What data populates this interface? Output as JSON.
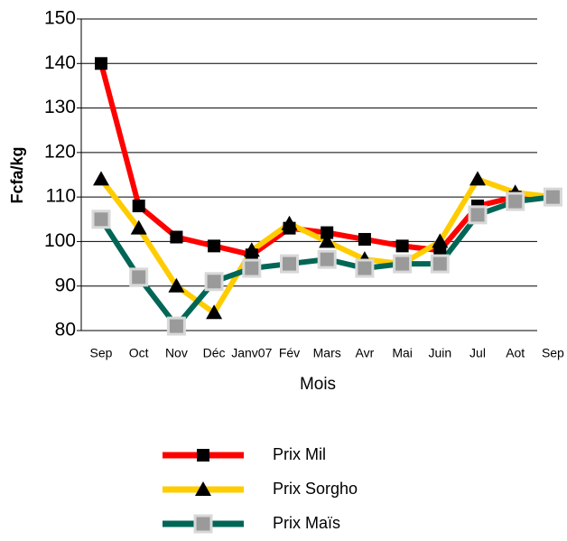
{
  "chart_data": {
    "type": "line",
    "categories": [
      "Sep",
      "Oct",
      "Nov",
      "Déc",
      "Janv07",
      "Fév",
      "Mars",
      "Avr",
      "Mai",
      "Juin",
      "Jul",
      "Aot",
      "Sep"
    ],
    "series": [
      {
        "name": "Prix Mil",
        "color": "#ff0000",
        "marker": "square",
        "values": [
          140,
          108,
          101,
          99,
          97,
          103,
          102,
          100.5,
          99,
          98,
          108,
          110,
          110
        ]
      },
      {
        "name": "Prix Sorgho",
        "color": "#ffcc00",
        "marker": "triangle",
        "values": [
          114,
          103,
          90,
          84,
          98,
          104,
          100,
          96,
          95,
          100,
          114,
          111,
          110
        ]
      },
      {
        "name": "Prix Maïs",
        "color": "#006655",
        "marker": "graysquare",
        "values": [
          105,
          92,
          81,
          91,
          94,
          95,
          96,
          94,
          95,
          95,
          106,
          109,
          110
        ]
      }
    ],
    "ylim": [
      80,
      150
    ],
    "yticks": [
      80,
      90,
      100,
      110,
      120,
      130,
      140,
      150
    ],
    "y_label": "Fcfa/kg",
    "x_label": "Mois",
    "grid": true,
    "legend": "bottom"
  }
}
